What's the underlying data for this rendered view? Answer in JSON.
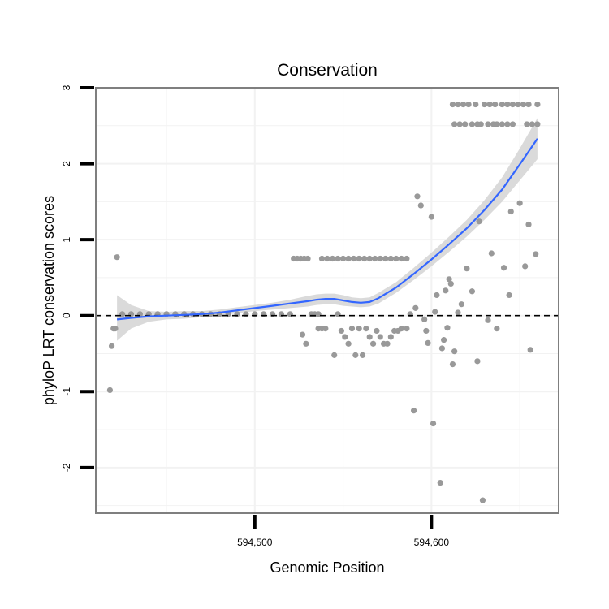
{
  "chart_data": {
    "type": "scatter",
    "title": "Conservation",
    "xlabel": "Genomic Position",
    "ylabel": "phyloP LRT conservation scores",
    "xlim": [
      594410,
      594672
    ],
    "ylim": [
      -2.6,
      3.0
    ],
    "x_ticks": [
      594500,
      594600
    ],
    "x_tick_labels": [
      "594,500",
      "594,600"
    ],
    "y_ticks": [
      -2,
      -1,
      0,
      1,
      2,
      3
    ],
    "y_tick_labels": [
      "-2",
      "-1",
      "0",
      "1",
      "2",
      "3"
    ],
    "x_minor_gridlines": [
      594450,
      594550,
      594650
    ],
    "y_minor_gridlines": [
      -2.5,
      -1.5,
      -0.5,
      0.5,
      1.5,
      2.5
    ],
    "reference_line": {
      "y": 0,
      "style": "dashed",
      "color": "#000000"
    },
    "colors": {
      "points": "#999999",
      "smooth": "#3366ff",
      "ribbon": "#d3d3d3",
      "panel_border": "#7f7f7f",
      "grid": "#f2f2f2"
    },
    "points": [
      [
        594418,
        -0.98
      ],
      [
        594419,
        -0.4
      ],
      [
        594420,
        -0.17
      ],
      [
        594421,
        -0.17
      ],
      [
        594422,
        0.77
      ],
      [
        594425,
        0.02
      ],
      [
        594430,
        0.02
      ],
      [
        594435,
        0.02
      ],
      [
        594440,
        0.02
      ],
      [
        594445,
        0.02
      ],
      [
        594450,
        0.02
      ],
      [
        594455,
        0.02
      ],
      [
        594460,
        0.02
      ],
      [
        594465,
        0.02
      ],
      [
        594470,
        0.02
      ],
      [
        594475,
        0.02
      ],
      [
        594480,
        0.02
      ],
      [
        594485,
        0.02
      ],
      [
        594490,
        0.02
      ],
      [
        594495,
        0.02
      ],
      [
        594500,
        0.02
      ],
      [
        594505,
        0.02
      ],
      [
        594510,
        0.02
      ],
      [
        594515,
        0.02
      ],
      [
        594520,
        0.02
      ],
      [
        594522,
        0.75
      ],
      [
        594524,
        0.75
      ],
      [
        594526,
        0.75
      ],
      [
        594528,
        0.75
      ],
      [
        594530,
        0.75
      ],
      [
        594527,
        -0.25
      ],
      [
        594529,
        -0.37
      ],
      [
        594532,
        0.02
      ],
      [
        594534,
        0.02
      ],
      [
        594536,
        0.02
      ],
      [
        594536,
        -0.17
      ],
      [
        594538,
        -0.17
      ],
      [
        594540,
        -0.17
      ],
      [
        594538,
        0.75
      ],
      [
        594541,
        0.75
      ],
      [
        594544,
        0.75
      ],
      [
        594547,
        0.75
      ],
      [
        594550,
        0.75
      ],
      [
        594553,
        0.75
      ],
      [
        594556,
        0.75
      ],
      [
        594559,
        0.75
      ],
      [
        594562,
        0.75
      ],
      [
        594565,
        0.75
      ],
      [
        594568,
        0.75
      ],
      [
        594571,
        0.75
      ],
      [
        594574,
        0.75
      ],
      [
        594577,
        0.75
      ],
      [
        594580,
        0.75
      ],
      [
        594583,
        0.75
      ],
      [
        594586,
        0.75
      ],
      [
        594545,
        -0.52
      ],
      [
        594547,
        0.02
      ],
      [
        594549,
        -0.2
      ],
      [
        594551,
        -0.28
      ],
      [
        594553,
        -0.37
      ],
      [
        594555,
        -0.17
      ],
      [
        594557,
        -0.52
      ],
      [
        594559,
        -0.17
      ],
      [
        594561,
        -0.52
      ],
      [
        594563,
        -0.17
      ],
      [
        594565,
        -0.28
      ],
      [
        594567,
        -0.37
      ],
      [
        594569,
        -0.2
      ],
      [
        594571,
        -0.28
      ],
      [
        594573,
        -0.37
      ],
      [
        594575,
        -0.37
      ],
      [
        594577,
        -0.28
      ],
      [
        594579,
        -0.2
      ],
      [
        594581,
        -0.2
      ],
      [
        594583,
        -0.17
      ],
      [
        594586,
        -0.17
      ],
      [
        594588,
        0.02
      ],
      [
        594590,
        -1.25
      ],
      [
        594591,
        0.1
      ],
      [
        594592,
        1.57
      ],
      [
        594594,
        1.45
      ],
      [
        594596,
        -0.05
      ],
      [
        594597,
        -0.2
      ],
      [
        594598,
        -0.36
      ],
      [
        594600,
        1.3
      ],
      [
        594601,
        -1.42
      ],
      [
        594602,
        0.05
      ],
      [
        594603,
        0.27
      ],
      [
        594605,
        -2.2
      ],
      [
        594606,
        -0.43
      ],
      [
        594607,
        -0.32
      ],
      [
        594608,
        0.33
      ],
      [
        594609,
        -0.16
      ],
      [
        594610,
        0.48
      ],
      [
        594611,
        0.42
      ],
      [
        594612,
        -0.64
      ],
      [
        594613,
        -0.47
      ],
      [
        594615,
        0.04
      ],
      [
        594617,
        0.15
      ],
      [
        594620,
        0.62
      ],
      [
        594623,
        0.32
      ],
      [
        594626,
        -0.6
      ],
      [
        594627,
        1.24
      ],
      [
        594629,
        -2.43
      ],
      [
        594632,
        -0.06
      ],
      [
        594634,
        0.82
      ],
      [
        594637,
        -0.17
      ],
      [
        594641,
        0.63
      ],
      [
        594644,
        0.27
      ],
      [
        594645,
        1.37
      ],
      [
        594650,
        1.48
      ],
      [
        594653,
        0.65
      ],
      [
        594655,
        1.2
      ],
      [
        594656,
        -0.45
      ],
      [
        594659,
        0.81
      ],
      [
        594612,
        2.78
      ],
      [
        594615,
        2.78
      ],
      [
        594618,
        2.78
      ],
      [
        594621,
        2.78
      ],
      [
        594625,
        2.78
      ],
      [
        594630,
        2.78
      ],
      [
        594633,
        2.78
      ],
      [
        594636,
        2.78
      ],
      [
        594640,
        2.78
      ],
      [
        594643,
        2.78
      ],
      [
        594646,
        2.78
      ],
      [
        594649,
        2.78
      ],
      [
        594652,
        2.78
      ],
      [
        594655,
        2.78
      ],
      [
        594660,
        2.78
      ],
      [
        594613,
        2.52
      ],
      [
        594616,
        2.52
      ],
      [
        594619,
        2.52
      ],
      [
        594623,
        2.52
      ],
      [
        594626,
        2.52
      ],
      [
        594628,
        2.52
      ],
      [
        594632,
        2.52
      ],
      [
        594635,
        2.52
      ],
      [
        594637,
        2.52
      ],
      [
        594640,
        2.52
      ],
      [
        594643,
        2.52
      ],
      [
        594646,
        2.52
      ],
      [
        594654,
        2.52
      ],
      [
        594657,
        2.52
      ],
      [
        594660,
        2.52
      ]
    ],
    "smooth_line": {
      "x": [
        594422,
        594430,
        594440,
        594450,
        594460,
        594470,
        594480,
        594490,
        594500,
        594510,
        594520,
        594530,
        594535,
        594540,
        594545,
        594550,
        594555,
        594560,
        594565,
        594570,
        594580,
        594590,
        594600,
        594610,
        594620,
        594630,
        594640,
        594650,
        594660
      ],
      "y": [
        -0.05,
        -0.03,
        -0.01,
        0.0,
        0.01,
        0.02,
        0.04,
        0.07,
        0.1,
        0.13,
        0.16,
        0.19,
        0.21,
        0.22,
        0.22,
        0.2,
        0.18,
        0.17,
        0.18,
        0.23,
        0.37,
        0.55,
        0.74,
        0.94,
        1.15,
        1.39,
        1.66,
        1.99,
        2.33
      ],
      "lower": [
        -0.33,
        -0.17,
        -0.08,
        -0.05,
        -0.04,
        -0.02,
        0.0,
        0.03,
        0.06,
        0.08,
        0.1,
        0.12,
        0.14,
        0.15,
        0.15,
        0.13,
        0.12,
        0.11,
        0.12,
        0.16,
        0.3,
        0.47,
        0.65,
        0.84,
        1.04,
        1.26,
        1.5,
        1.78,
        2.06
      ],
      "upper": [
        0.27,
        0.14,
        0.06,
        0.05,
        0.06,
        0.06,
        0.08,
        0.11,
        0.14,
        0.17,
        0.21,
        0.26,
        0.28,
        0.29,
        0.29,
        0.27,
        0.24,
        0.23,
        0.24,
        0.3,
        0.44,
        0.63,
        0.83,
        1.04,
        1.26,
        1.52,
        1.82,
        2.2,
        2.6
      ]
    }
  }
}
